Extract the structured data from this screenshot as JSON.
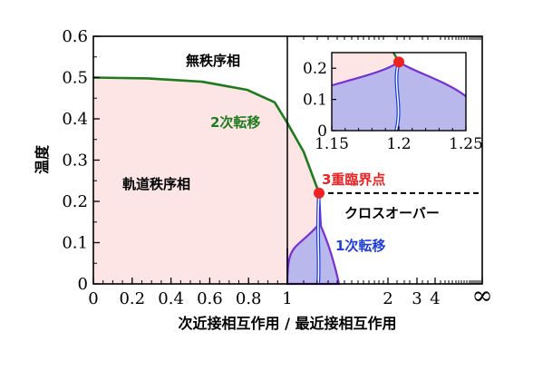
{
  "chart_data": {
    "type": "area",
    "xlabel": "次近接相互作用 / 最近接相互作用",
    "ylabel": "温度",
    "ylim": [
      0,
      0.6
    ],
    "x_scale": "linear from 0 to 1, then compressed reciprocal-type scale from 1 to ∞",
    "grid": false,
    "x_tick_labels": [
      "0",
      "0.2",
      "0.4",
      "0.6",
      "0.8",
      "1",
      "2",
      "3",
      "4",
      "∞"
    ],
    "y_tick_labels": [
      "0",
      "0.1",
      "0.2",
      "0.3",
      "0.4",
      "0.5",
      "0.6"
    ],
    "regions": [
      {
        "label": "無秩序相"
      },
      {
        "label": "軌道秩序相",
        "color": "#fde5e5"
      },
      {
        "label": "クロスオーバー"
      }
    ],
    "lines": [
      {
        "label": "2次転移",
        "color": "#1e7b1e",
        "points": [
          [
            0,
            0.5
          ],
          [
            0.2,
            0.498
          ],
          [
            0.4,
            0.49
          ],
          [
            0.6,
            0.47
          ],
          [
            0.8,
            0.43
          ],
          [
            1.0,
            0.39
          ],
          [
            1.1,
            0.33
          ],
          [
            1.2,
            0.22
          ]
        ]
      },
      {
        "label": "1次転移",
        "color": "#1f3fd8",
        "shaded": "#b8b8ec",
        "boundary": "#7a2fd0"
      }
    ],
    "tricritical_point": {
      "label": "3重臨界点",
      "x": 1.2,
      "y": 0.22,
      "color": "#ee2222"
    },
    "crossover_y": 0.22,
    "inset": {
      "xlim": [
        1.15,
        1.25
      ],
      "ylim": [
        0,
        0.25
      ],
      "x_tick_labels": [
        "1.15",
        "1.2",
        "1.25"
      ],
      "y_tick_labels": [
        "0",
        "0.1",
        "0.2"
      ]
    }
  }
}
